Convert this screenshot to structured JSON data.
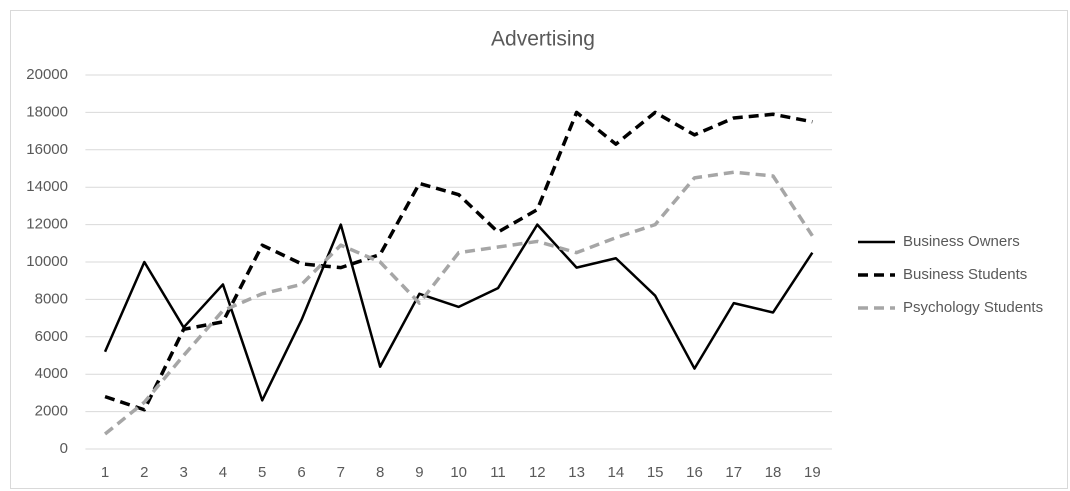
{
  "chart_data": {
    "type": "line",
    "title": "Advertising",
    "categories": [
      1,
      2,
      3,
      4,
      5,
      6,
      7,
      8,
      9,
      10,
      11,
      12,
      13,
      14,
      15,
      16,
      17,
      18,
      19
    ],
    "series": [
      {
        "name": "Business Owners",
        "color": "#000000",
        "dashed": false,
        "values": [
          5200,
          10000,
          6500,
          8800,
          2600,
          6900,
          12000,
          4400,
          8300,
          7600,
          8600,
          12000,
          9700,
          10200,
          8200,
          4300,
          7800,
          7300,
          10500
        ]
      },
      {
        "name": "Business Students",
        "color": "#000000",
        "dashed": true,
        "values": [
          2800,
          2100,
          6400,
          6800,
          10900,
          9900,
          9700,
          10400,
          14200,
          13600,
          11600,
          12800,
          18000,
          16300,
          18000,
          16800,
          17700,
          17900,
          17500
        ]
      },
      {
        "name": "Psychology Students",
        "color": "#a6a6a6",
        "dashed": true,
        "values": [
          800,
          2500,
          5000,
          7400,
          8300,
          8800,
          10900,
          10000,
          7800,
          10500,
          10800,
          11100,
          10500,
          11300,
          12000,
          14500,
          14800,
          14600,
          11400
        ]
      }
    ],
    "ylim": [
      0,
      20000
    ],
    "yticks": [
      0,
      2000,
      4000,
      6000,
      8000,
      10000,
      12000,
      14000,
      16000,
      18000,
      20000
    ],
    "grid": true,
    "legend": "right"
  }
}
